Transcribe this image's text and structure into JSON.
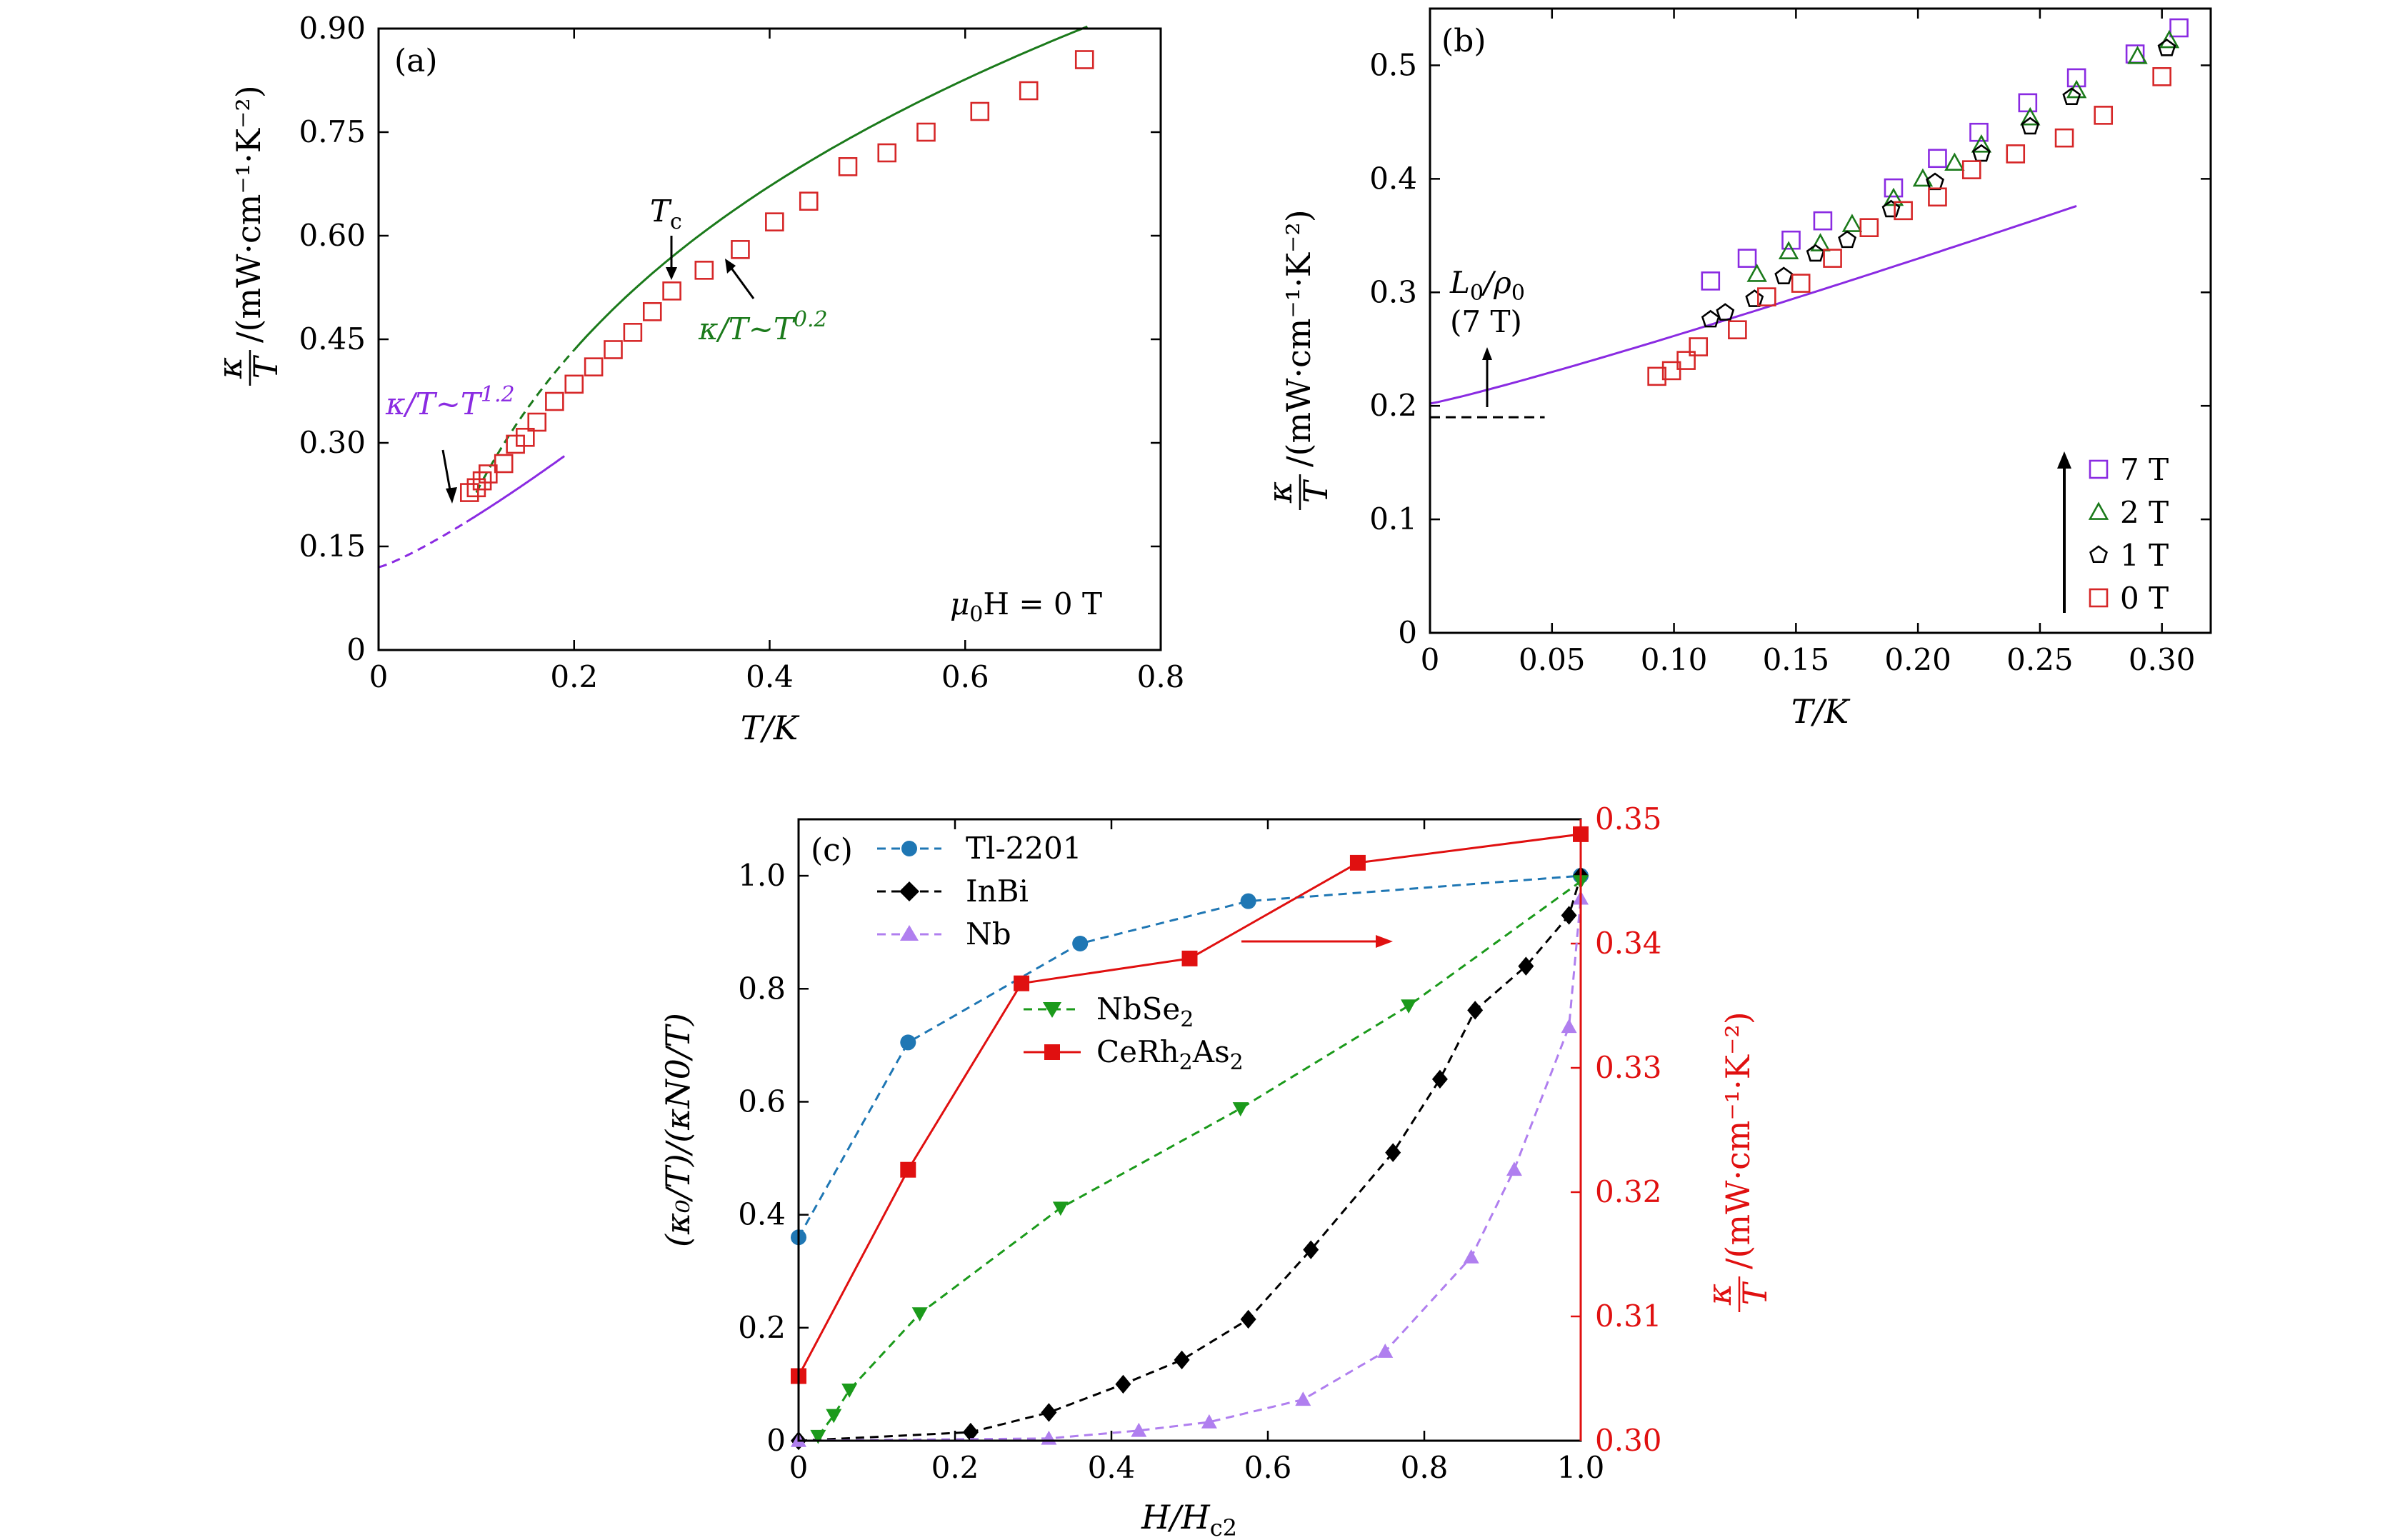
{
  "chart_data": [
    {
      "panel": "(a)",
      "type": "scatter",
      "xlabel": "T/K",
      "ylabel": "κ/T /(mW·cm⁻¹·K⁻²)",
      "xlim": [
        0,
        0.8
      ],
      "ylim": [
        0,
        0.9
      ],
      "xticks": [
        0,
        0.2,
        0.4,
        0.6,
        0.8
      ],
      "xtick_labels": [
        "0",
        "0.2",
        "0.4",
        "0.6",
        "0.8"
      ],
      "yticks": [
        0,
        0.15,
        0.3,
        0.45,
        0.6,
        0.75,
        0.9
      ],
      "ytick_labels": [
        "0",
        "0.15",
        "0.30",
        "0.45",
        "0.60",
        "0.75",
        "0.90"
      ],
      "series": [
        {
          "marker": "open-square",
          "color": "#d62728",
          "x": [
            0.093,
            0.1,
            0.106,
            0.112,
            0.128,
            0.14,
            0.15,
            0.162,
            0.18,
            0.2,
            0.22,
            0.24,
            0.26,
            0.28,
            0.3,
            0.333,
            0.37,
            0.405,
            0.44,
            0.48,
            0.52,
            0.56,
            0.615,
            0.665,
            0.722
          ],
          "y": [
            0.228,
            0.235,
            0.245,
            0.255,
            0.27,
            0.298,
            0.308,
            0.33,
            0.36,
            0.385,
            0.41,
            0.435,
            0.46,
            0.49,
            0.52,
            0.55,
            0.58,
            0.62,
            0.65,
            0.7,
            0.72,
            0.75,
            0.78,
            0.81,
            0.855
          ]
        }
      ],
      "fits": [
        {
          "label": "κ/T∼T^1.2",
          "color": "#8a2be2",
          "style": "solid below 0.18 then dashed to 0",
          "a": 0.12,
          "b": 1.18,
          "n": 1.2
        },
        {
          "label": "κ/T∼T^0.2",
          "color": "#1b7a1b",
          "style": "solid above 0.3, dashed below",
          "a": -1.16,
          "b": 2.2,
          "n": 0.2
        }
      ],
      "annotations": {
        "kt12": "κ/T∼T",
        "kt12_exp": "1.2",
        "kt02": "κ/T∼T",
        "kt02_exp": "0.2",
        "tc": "T",
        "tc_sub": "c",
        "field": "μ",
        "field_sub": "0",
        "field_rest": "H = 0 T"
      }
    },
    {
      "panel": "(b)",
      "type": "scatter",
      "xlabel": "T/K",
      "ylabel": "κ/T /(mW·cm⁻¹·K⁻²)",
      "xlim": [
        0,
        0.32
      ],
      "ylim": [
        0,
        0.55
      ],
      "xticks": [
        0,
        0.05,
        0.1,
        0.15,
        0.2,
        0.25,
        0.3
      ],
      "xtick_labels": [
        "0",
        "0.05",
        "0.10",
        "0.15",
        "0.20",
        "0.25",
        "0.30"
      ],
      "yticks": [
        0,
        0.1,
        0.2,
        0.3,
        0.4,
        0.5
      ],
      "ytick_labels": [
        "0",
        "0.1",
        "0.2",
        "0.3",
        "0.4",
        "0.5"
      ],
      "series": [
        {
          "name": "7 T",
          "marker": "open-square",
          "color": "#8a2be2",
          "x": [
            0.115,
            0.13,
            0.148,
            0.161,
            0.19,
            0.208,
            0.225,
            0.245,
            0.265,
            0.289,
            0.307
          ],
          "y": [
            0.31,
            0.33,
            0.346,
            0.363,
            0.392,
            0.418,
            0.441,
            0.467,
            0.489,
            0.51,
            0.533
          ]
        },
        {
          "name": "2 T",
          "marker": "open-triangle",
          "color": "#1b7a1b",
          "x": [
            0.134,
            0.147,
            0.16,
            0.173,
            0.19,
            0.202,
            0.215,
            0.226,
            0.246,
            0.265,
            0.29,
            0.303
          ],
          "y": [
            0.316,
            0.336,
            0.343,
            0.36,
            0.383,
            0.4,
            0.414,
            0.43,
            0.454,
            0.478,
            0.508,
            0.522
          ]
        },
        {
          "name": "1 T",
          "marker": "open-pentagon",
          "color": "#000000",
          "x": [
            0.115,
            0.121,
            0.133,
            0.145,
            0.158,
            0.171,
            0.189,
            0.207,
            0.226,
            0.246,
            0.263,
            0.302
          ],
          "y": [
            0.276,
            0.282,
            0.294,
            0.314,
            0.334,
            0.346,
            0.373,
            0.397,
            0.422,
            0.446,
            0.472,
            0.515
          ]
        },
        {
          "name": "0 T",
          "marker": "open-square",
          "color": "#d62728",
          "x": [
            0.093,
            0.099,
            0.105,
            0.11,
            0.126,
            0.138,
            0.152,
            0.165,
            0.18,
            0.194,
            0.208,
            0.222,
            0.24,
            0.26,
            0.276,
            0.3
          ],
          "y": [
            0.226,
            0.231,
            0.24,
            0.252,
            0.267,
            0.296,
            0.308,
            0.33,
            0.357,
            0.372,
            0.384,
            0.408,
            0.422,
            0.436,
            0.456,
            0.49
          ]
        }
      ],
      "fit": {
        "color": "#8a2be2",
        "a": 0.202,
        "b": 0.75,
        "n": 1.1,
        "x_end": 0.265
      },
      "reference_line": {
        "y": 0.19,
        "x_end": 0.047,
        "style": "dashed"
      },
      "annotations": {
        "l0": "L",
        "l0_sub": "0",
        "rho": "/ρ",
        "rho_sub": "0",
        "l0_field": "(7 T)"
      },
      "legend_position": "bottom-right"
    },
    {
      "panel": "(c)",
      "type": "line",
      "xlabel": "H/H",
      "xlabel_sub": "c2",
      "ylabel_left": "(κ₀/T)/(κ_N0/T)",
      "ylabel_right": "κ/T /(mW·cm⁻¹·K⁻²)",
      "xlim": [
        0,
        1.0
      ],
      "ylim_left": [
        0,
        1.1
      ],
      "ylim_right": [
        0.3,
        0.35
      ],
      "xticks": [
        0,
        0.2,
        0.4,
        0.6,
        0.8,
        1.0
      ],
      "xtick_labels": [
        "0",
        "0.2",
        "0.4",
        "0.6",
        "0.8",
        "1.0"
      ],
      "yticks_left": [
        0,
        0.2,
        0.4,
        0.6,
        0.8,
        1.0
      ],
      "ytick_labels_left": [
        "0",
        "0.2",
        "0.4",
        "0.6",
        "0.8",
        "1.0"
      ],
      "yticks_right": [
        0.3,
        0.31,
        0.32,
        0.33,
        0.34,
        0.35
      ],
      "ytick_labels_right": [
        "0.30",
        "0.31",
        "0.32",
        "0.33",
        "0.34",
        "0.35"
      ],
      "series": [
        {
          "name": "Tl-2201",
          "marker": "circle",
          "color": "#1f77b4",
          "style": "dashed",
          "axis": "left",
          "x": [
            0,
            0.14,
            0.36,
            0.575,
            1.0
          ],
          "y": [
            0.36,
            0.705,
            0.88,
            0.955,
            1.0
          ]
        },
        {
          "name": "InBi",
          "marker": "diamond",
          "color": "#000000",
          "style": "dashed",
          "axis": "left",
          "x": [
            0,
            0.22,
            0.32,
            0.415,
            0.49,
            0.575,
            0.655,
            0.76,
            0.82,
            0.865,
            0.93,
            0.985,
            1.0
          ],
          "y": [
            0,
            0.015,
            0.05,
            0.1,
            0.143,
            0.215,
            0.338,
            0.51,
            0.64,
            0.762,
            0.84,
            0.93,
            1.0
          ]
        },
        {
          "name": "Nb",
          "marker": "triangle-up",
          "color": "#b07fef",
          "style": "dashed",
          "axis": "left",
          "x": [
            0,
            0.32,
            0.435,
            0.525,
            0.645,
            0.75,
            0.86,
            0.915,
            0.985,
            1.0
          ],
          "y": [
            0,
            0.004,
            0.018,
            0.033,
            0.073,
            0.158,
            0.325,
            0.48,
            0.733,
            0.96
          ]
        },
        {
          "name": "NbSe₂",
          "marker": "triangle-down",
          "color": "#1b9a1b",
          "style": "dashed",
          "axis": "left",
          "x": [
            0.025,
            0.045,
            0.065,
            0.155,
            0.335,
            0.565,
            0.78,
            1.0
          ],
          "y": [
            0.008,
            0.045,
            0.09,
            0.225,
            0.412,
            0.588,
            0.77,
            0.99
          ]
        },
        {
          "name": "CeRh₂As₂",
          "marker": "square",
          "color": "#e01010",
          "style": "solid",
          "axis": "right",
          "x": [
            0,
            0.14,
            0.285,
            0.5,
            0.715,
            1.0
          ],
          "y": [
            0.3052,
            0.3218,
            0.3368,
            0.3388,
            0.3465,
            0.3488
          ]
        }
      ],
      "legend": {
        "tl2201": "Tl-2201",
        "inbi": "InBi",
        "nb": "Nb",
        "nbse2_base": "NbSe",
        "nbse2_sub": "2",
        "cerh_a": "CeRh",
        "cerh_sub1": "2",
        "cerh_b": "As",
        "cerh_sub2": "2"
      },
      "legend_position": "top-left"
    }
  ],
  "labels": {
    "a": "(a)",
    "b": "(b)",
    "c": "(c)",
    "t_over_k": "T/K",
    "kappa": "κ",
    "T": "T",
    "units": "/(mW·cm⁻¹·K⁻²)",
    "c_xlabel": "H/H",
    "c_xlabel_sub": "c2",
    "c_ylabel_left": "(κ₀/T)/(κN0/T)"
  },
  "colors": {
    "red": "#d62728",
    "purple": "#8a2be2",
    "green": "#1b7a1b",
    "blue": "#1f77b4",
    "bright_red": "#e01010",
    "nb_purple": "#b07fef",
    "nbse2_green": "#1b9a1b"
  }
}
